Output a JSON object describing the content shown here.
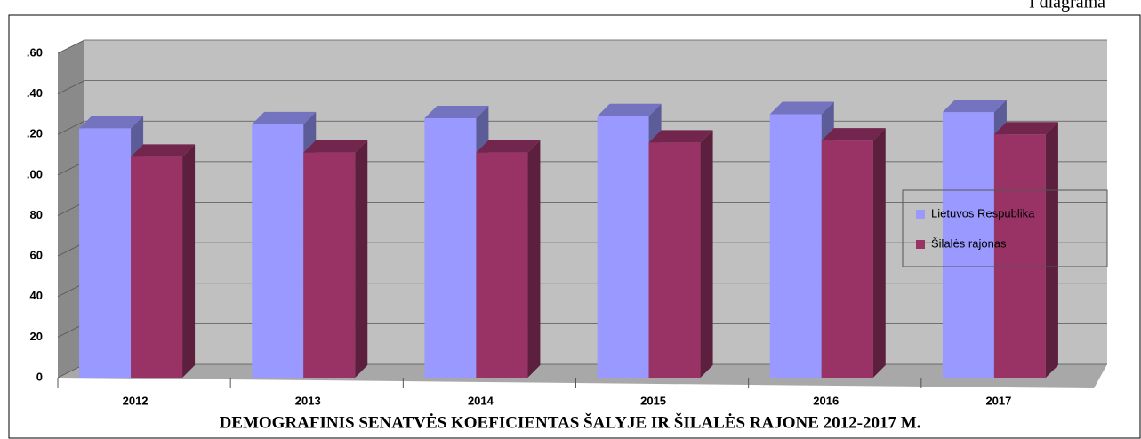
{
  "chart_data": {
    "type": "bar3d",
    "title": "DEMOGRAFINIS SENATVĖS KOEFICIENTAS ŠALYJE IR ŠILALĖS RAJONE 2012-2017 M.",
    "annotation": "I diagrama",
    "categories": [
      "2012",
      "2013",
      "2014",
      "2015",
      "2016",
      "2017"
    ],
    "series": [
      {
        "name": "Lietuvos Respublika",
        "color": "#9999ff",
        "values": [
          123,
          125,
          128,
          129,
          130,
          131
        ]
      },
      {
        "name": "Šilalės rajonas",
        "color": "#993366",
        "values": [
          109,
          111,
          111,
          116,
          117,
          120
        ]
      }
    ],
    "ylim": [
      0,
      160
    ],
    "yticks": [
      0,
      20,
      40,
      60,
      80,
      {
        "value": 100,
        "label": ".00"
      },
      {
        "value": 120,
        "label": ".20"
      },
      {
        "value": 140,
        "label": ".40"
      },
      {
        "value": 160,
        "label": ".60"
      }
    ],
    "grid": true,
    "legend": "right"
  }
}
